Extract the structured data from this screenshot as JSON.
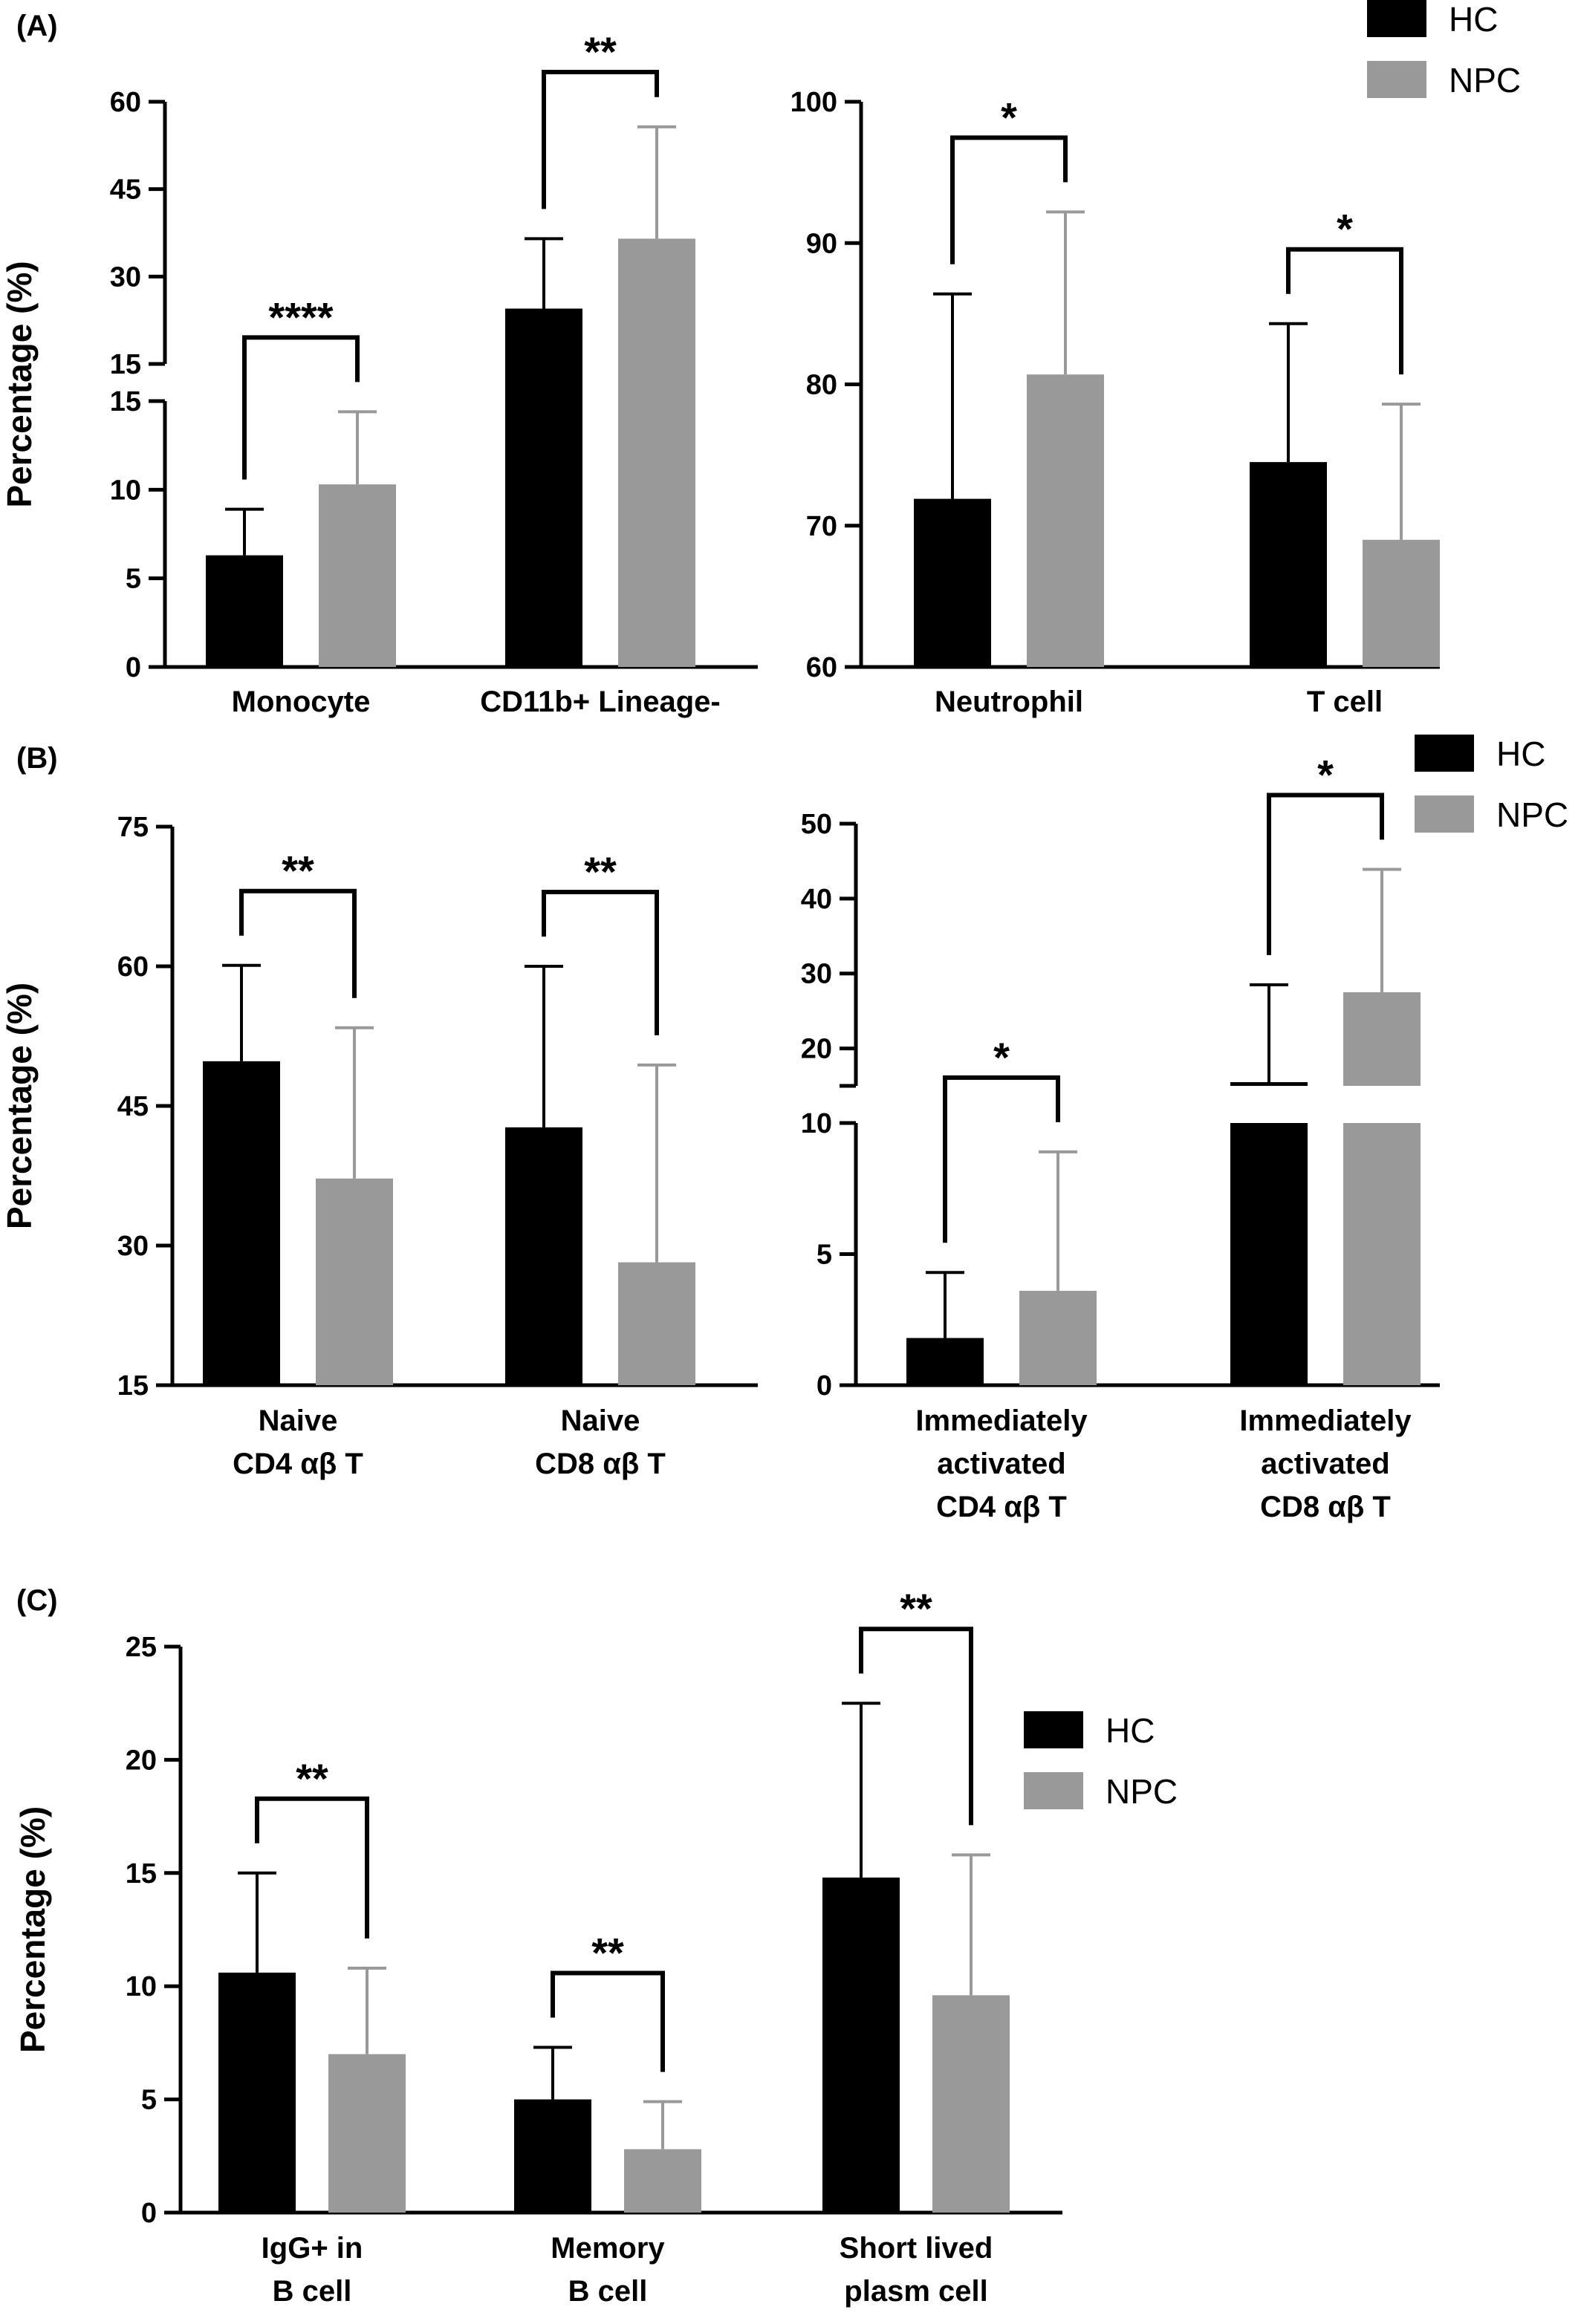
{
  "legend": {
    "series": [
      {
        "name": "HC",
        "color": "#000000"
      },
      {
        "name": "NPC",
        "color": "#999999"
      }
    ]
  },
  "chart_data": [
    {
      "id": "A-left",
      "panel": "(A)",
      "type": "bar",
      "ylabel": "Percentage (%)",
      "categories": [
        [
          "Monocyte"
        ],
        [
          "CD11b+ Lineage-"
        ]
      ],
      "broken_axis": {
        "lower": [
          0,
          15
        ],
        "upper": [
          15,
          60
        ]
      },
      "yticks_lower": [
        0,
        5,
        10,
        15
      ],
      "yticks_upper": [
        15,
        30,
        45,
        60
      ],
      "series": [
        {
          "name": "HC",
          "values": [
            6.3,
            24.5
          ],
          "errors": [
            2.6,
            12
          ]
        },
        {
          "name": "NPC",
          "values": [
            10.3,
            36.5
          ],
          "errors": [
            4.1,
            19.2
          ]
        }
      ],
      "significance": [
        "****",
        "**"
      ],
      "legend": false
    },
    {
      "id": "A-right",
      "panel": "",
      "type": "bar",
      "ylabel": "",
      "categories": [
        [
          "Neutrophil"
        ],
        [
          "T cell"
        ]
      ],
      "ylim": [
        60,
        100
      ],
      "yticks": [
        60,
        70,
        80,
        90,
        100
      ],
      "series": [
        {
          "name": "HC",
          "values": [
            71.9,
            74.5
          ],
          "errors": [
            14.5,
            9.8
          ]
        },
        {
          "name": "NPC",
          "values": [
            80.7,
            69.0
          ],
          "errors": [
            11.5,
            9.6
          ]
        }
      ],
      "significance": [
        "*",
        "*"
      ],
      "legend": "top-right"
    },
    {
      "id": "B-left",
      "panel": "(B)",
      "type": "bar",
      "ylabel": "Percentage (%)",
      "categories": [
        [
          "Naive",
          "CD4 αβ T"
        ],
        [
          "Naive",
          "CD8 αβ T"
        ]
      ],
      "ylim": [
        15,
        75
      ],
      "yticks": [
        15,
        30,
        45,
        60,
        75
      ],
      "series": [
        {
          "name": "HC",
          "values": [
            49.8,
            42.7
          ],
          "errors": [
            10.3,
            17.3
          ]
        },
        {
          "name": "NPC",
          "values": [
            37.2,
            28.2
          ],
          "errors": [
            16.2,
            21.2
          ]
        }
      ],
      "significance": [
        "**",
        "**"
      ],
      "legend": false
    },
    {
      "id": "B-right",
      "panel": "",
      "type": "bar",
      "ylabel": "",
      "categories": [
        [
          "Immediately",
          "activated",
          "CD4 αβ T"
        ],
        [
          "Immediately",
          "activated",
          "CD8 αβ T"
        ]
      ],
      "broken_axis": {
        "lower": [
          0,
          10
        ],
        "upper": [
          15,
          50
        ]
      },
      "yticks_lower": [
        0,
        5,
        10
      ],
      "yticks_upper": [
        20,
        30,
        40,
        50
      ],
      "series": [
        {
          "name": "HC",
          "values": [
            1.8,
            15.5
          ],
          "errors": [
            2.5,
            13.0
          ]
        },
        {
          "name": "NPC",
          "values": [
            3.6,
            27.5
          ],
          "errors": [
            5.3,
            16.4
          ]
        }
      ],
      "significance": [
        "*",
        "*"
      ],
      "legend": "top-right"
    },
    {
      "id": "C",
      "panel": "(C)",
      "type": "bar",
      "ylabel": "Percentage (%)",
      "categories": [
        [
          "IgG+ in",
          "B cell"
        ],
        [
          "Memory",
          "B cell"
        ],
        [
          "Short lived",
          "plasm cell"
        ]
      ],
      "ylim": [
        0,
        25
      ],
      "yticks": [
        0,
        5,
        10,
        15,
        20,
        25
      ],
      "series": [
        {
          "name": "HC",
          "values": [
            10.6,
            5.0,
            14.8
          ],
          "errors": [
            4.4,
            2.3,
            7.7
          ]
        },
        {
          "name": "NPC",
          "values": [
            7.0,
            2.8,
            9.6
          ],
          "errors": [
            3.8,
            2.1,
            6.2
          ]
        }
      ],
      "significance": [
        "**",
        "**",
        "**"
      ],
      "legend": "right"
    }
  ]
}
